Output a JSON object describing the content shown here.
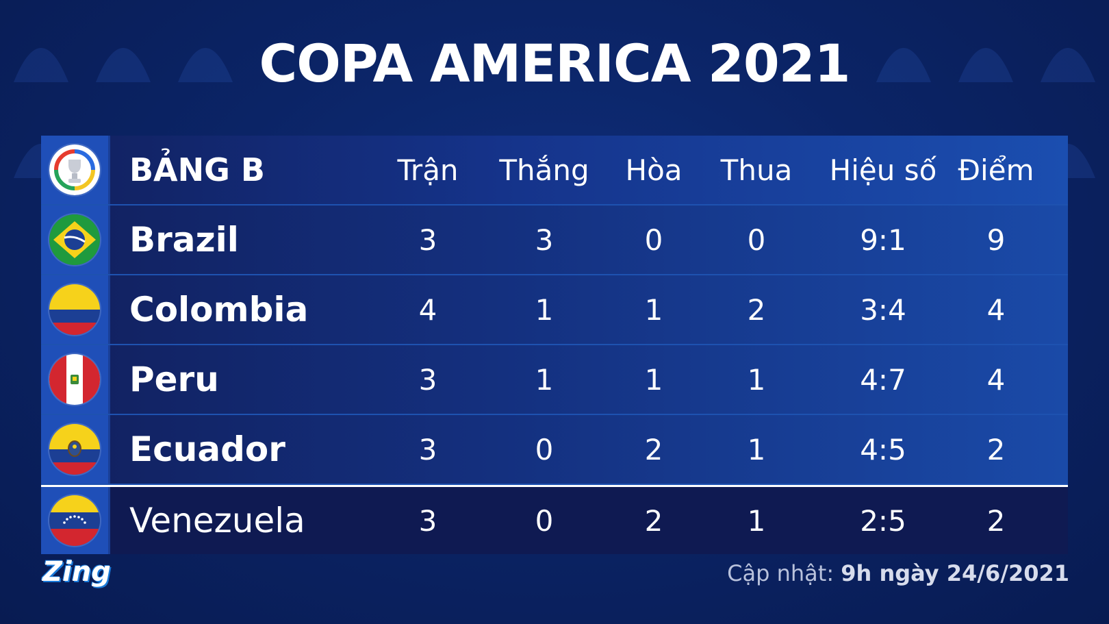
{
  "title": "COPA AMERICA 2021",
  "group": "BẢNG B",
  "columns": [
    "Trận",
    "Thắng",
    "Hòa",
    "Thua",
    "Hiệu số",
    "Điểm"
  ],
  "rows": [
    {
      "team": "Brazil",
      "flag": "brazil-flag-icon",
      "values": [
        "3",
        "3",
        "0",
        "0",
        "9:1",
        "9"
      ]
    },
    {
      "team": "Colombia",
      "flag": "colombia-flag-icon",
      "values": [
        "4",
        "1",
        "1",
        "2",
        "3:4",
        "4"
      ]
    },
    {
      "team": "Peru",
      "flag": "peru-flag-icon",
      "values": [
        "3",
        "1",
        "1",
        "1",
        "4:7",
        "4"
      ]
    },
    {
      "team": "Ecuador",
      "flag": "ecuador-flag-icon",
      "values": [
        "3",
        "0",
        "2",
        "1",
        "4:5",
        "2"
      ]
    },
    {
      "team": "Venezuela",
      "flag": "venezuela-flag-icon",
      "values": [
        "3",
        "0",
        "2",
        "1",
        "2:5",
        "2"
      ]
    }
  ],
  "footer": {
    "logo": "Zing",
    "updated_label": "Cập nhật:",
    "updated_value": "9h ngày 24/6/2021"
  },
  "colors": {
    "background": "#0b2466",
    "row_gradient_end": "#1a4aa8",
    "flag_cell": "#1f4fb8"
  }
}
